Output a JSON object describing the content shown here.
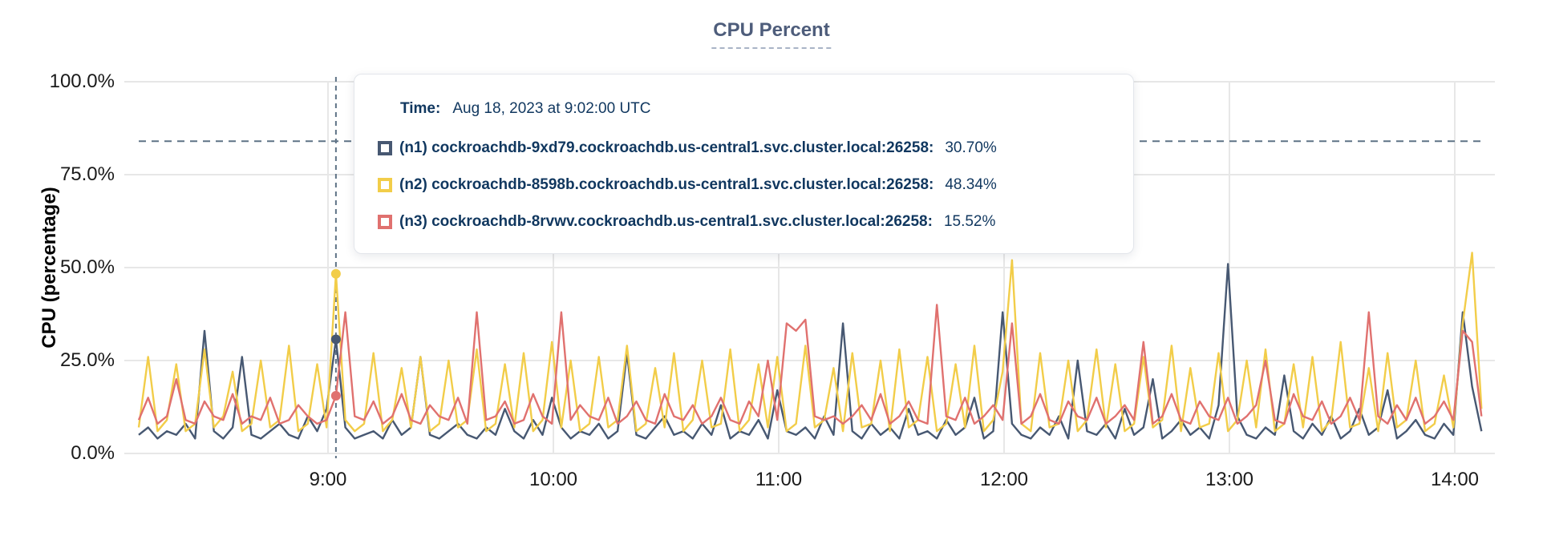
{
  "title": "CPU Percent",
  "y_axis": {
    "label": "CPU (percentage)",
    "ticks": [
      "100.0%",
      "75.0%",
      "50.0%",
      "25.0%",
      "0.0%"
    ]
  },
  "x_axis": {
    "ticks": [
      "9:00",
      "10:00",
      "11:00",
      "12:00",
      "13:00",
      "14:00"
    ]
  },
  "tooltip": {
    "time_label": "Time:",
    "time_value": "Aug 18, 2023 at 9:02:00 UTC",
    "rows": [
      {
        "name": "(n1) cockroachdb-9xd79.cockroachdb.us-central1.svc.cluster.local:26258:",
        "value": "30.70%",
        "color": "#475872"
      },
      {
        "name": "(n2) cockroachdb-8598b.cockroachdb.us-central1.svc.cluster.local:26258:",
        "value": "48.34%",
        "color": "#f2cd49"
      },
      {
        "name": "(n3) cockroachdb-8rvwv.cockroachdb.us-central1.svc.cluster.local:26258:",
        "value": "15.52%",
        "color": "#e0716f"
      }
    ]
  },
  "colors": {
    "grid": "#e7e7e7",
    "dashed_guides": "#5f7386",
    "title_text": "#4e5d7b",
    "tooltip_text": "#10375f",
    "series_n1": "#475872",
    "series_n2": "#f2cd49",
    "series_n3": "#e0716f"
  },
  "chart_data": {
    "type": "line",
    "title": "CPU Percent",
    "ylabel": "CPU (percentage)",
    "ylim": [
      0,
      100
    ],
    "y_ticks_percent": [
      100,
      75,
      50,
      25,
      0
    ],
    "x_tick_labels": [
      "9:00",
      "10:00",
      "11:00",
      "12:00",
      "13:00",
      "14:00"
    ],
    "x_start_time": "8:10",
    "x_end_time": "14:07",
    "x_step_minutes": 2.5,
    "grid": true,
    "legend_position": "tooltip",
    "threshold_percent": 84,
    "hover": {
      "time": "Aug 18, 2023 at 9:02:00 UTC",
      "index": 21,
      "values_percent": {
        "n1": 30.7,
        "n2": 48.34,
        "n3": 15.52
      }
    },
    "series": [
      {
        "name": "(n1) cockroachdb-9xd79.cockroachdb.us-central1.svc.cluster.local:26258",
        "color": "#475872",
        "values": [
          5,
          7,
          4,
          6,
          5,
          8,
          4,
          33,
          6,
          4,
          7,
          26,
          5,
          4,
          6,
          8,
          5,
          4,
          10,
          6,
          12,
          30.7,
          7,
          4,
          5,
          6,
          4,
          9,
          5,
          7,
          26,
          5,
          4,
          6,
          8,
          5,
          4,
          7,
          5,
          12,
          6,
          4,
          9,
          5,
          15,
          7,
          4,
          6,
          5,
          8,
          4,
          6,
          27,
          5,
          4,
          7,
          10,
          5,
          6,
          4,
          8,
          5,
          13,
          4,
          6,
          5,
          9,
          4,
          17,
          6,
          5,
          7,
          4,
          10,
          5,
          35,
          6,
          4,
          8,
          5,
          7,
          4,
          12,
          5,
          6,
          4,
          9,
          5,
          7,
          15,
          4,
          6,
          38,
          8,
          5,
          4,
          7,
          5,
          10,
          4,
          25,
          6,
          5,
          8,
          4,
          12,
          5,
          7,
          20,
          4,
          6,
          9,
          5,
          7,
          4,
          13,
          51,
          10,
          5,
          4,
          7,
          5,
          21,
          6,
          4,
          8,
          5,
          10,
          4,
          6,
          12,
          5,
          7,
          17,
          4,
          6,
          9,
          5,
          4,
          8,
          5,
          38,
          18,
          6
        ]
      },
      {
        "name": "(n2) cockroachdb-8598b.cockroachdb.us-central1.svc.cluster.local:26258",
        "color": "#f2cd49",
        "values": [
          7,
          26,
          6,
          9,
          24,
          6,
          8,
          28,
          7,
          10,
          22,
          6,
          8,
          25,
          7,
          9,
          29,
          6,
          8,
          24,
          7,
          48.34,
          9,
          6,
          8,
          27,
          6,
          9,
          23,
          7,
          26,
          6,
          8,
          25,
          7,
          9,
          28,
          6,
          8,
          24,
          7,
          27,
          6,
          9,
          30,
          7,
          25,
          6,
          8,
          26,
          7,
          9,
          29,
          6,
          8,
          23,
          7,
          27,
          6,
          9,
          25,
          7,
          8,
          28,
          6,
          9,
          24,
          7,
          26,
          6,
          8,
          29,
          7,
          9,
          23,
          6,
          27,
          7,
          8,
          25,
          6,
          28,
          7,
          9,
          26,
          6,
          8,
          24,
          7,
          29,
          6,
          9,
          22,
          52,
          8,
          6,
          27,
          7,
          8,
          25,
          6,
          9,
          28,
          7,
          24,
          6,
          8,
          26,
          7,
          9,
          29,
          6,
          23,
          7,
          8,
          27,
          6,
          9,
          25,
          7,
          28,
          6,
          8,
          24,
          7,
          26,
          6,
          9,
          30,
          7,
          8,
          23,
          6,
          27,
          7,
          9,
          25,
          6,
          8,
          21,
          7,
          35,
          54,
          12
        ]
      },
      {
        "name": "(n3) cockroachdb-8rvwv.cockroachdb.us-central1.svc.cluster.local:26258",
        "color": "#e0716f",
        "values": [
          9,
          15,
          8,
          10,
          20,
          9,
          8,
          14,
          10,
          9,
          16,
          8,
          10,
          9,
          15,
          8,
          9,
          13,
          10,
          8,
          9,
          15.52,
          38,
          10,
          9,
          14,
          8,
          10,
          16,
          9,
          8,
          13,
          10,
          9,
          15,
          8,
          38,
          9,
          10,
          14,
          8,
          9,
          16,
          10,
          8,
          38,
          9,
          13,
          10,
          9,
          15,
          8,
          10,
          14,
          9,
          8,
          16,
          10,
          9,
          13,
          8,
          10,
          15,
          9,
          8,
          14,
          10,
          25,
          9,
          35,
          33,
          36,
          10,
          9,
          10,
          8,
          10,
          13,
          9,
          16,
          8,
          10,
          14,
          9,
          8,
          40,
          10,
          9,
          15,
          8,
          10,
          13,
          9,
          35,
          8,
          10,
          16,
          9,
          8,
          14,
          10,
          9,
          15,
          8,
          10,
          13,
          9,
          30,
          8,
          10,
          16,
          9,
          8,
          14,
          10,
          9,
          15,
          8,
          10,
          13,
          25,
          9,
          8,
          16,
          10,
          9,
          14,
          8,
          10,
          15,
          9,
          38,
          10,
          8,
          13,
          9,
          15,
          8,
          10,
          14,
          9,
          33,
          30,
          10
        ]
      }
    ]
  }
}
